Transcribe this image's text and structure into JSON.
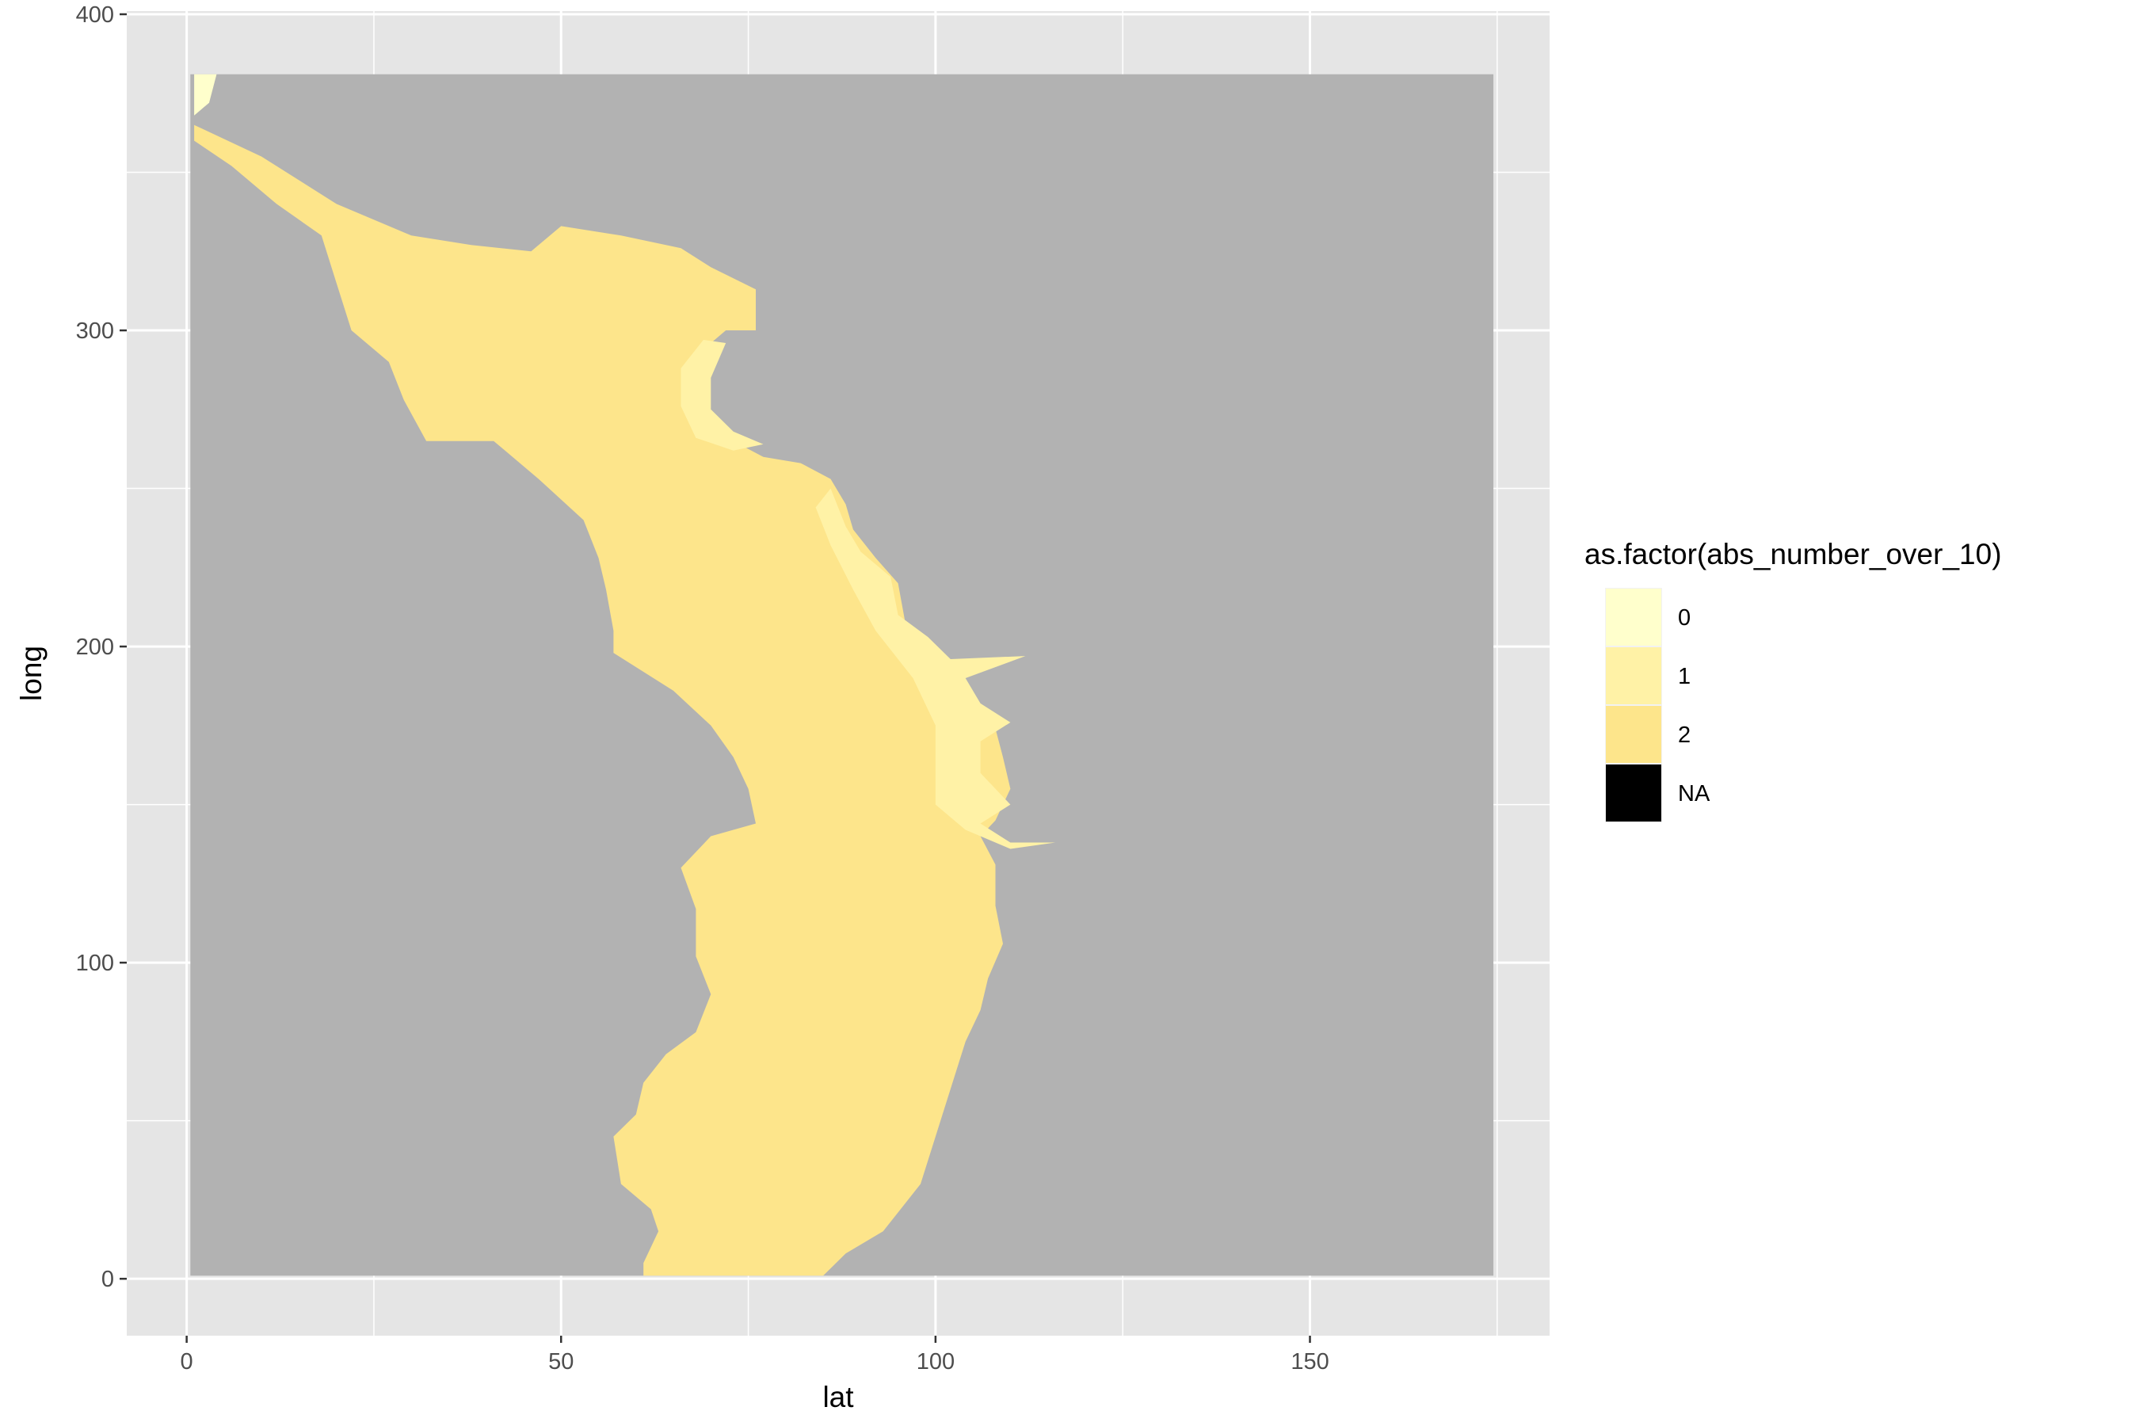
{
  "chart_data": {
    "type": "heatmap",
    "xlabel": "lat",
    "ylabel": "long",
    "xlim": [
      -8,
      182
    ],
    "ylim": [
      -18,
      401
    ],
    "x_ticks": [
      0,
      50,
      100,
      150
    ],
    "y_ticks": [
      0,
      100,
      200,
      300,
      400
    ],
    "x_tick_labels": [
      "0",
      "50",
      "100",
      "150"
    ],
    "y_tick_labels": [
      "0",
      "100",
      "200",
      "300",
      "400"
    ],
    "grid": true,
    "panel_background": "#e5e5e5",
    "grid_color": "#ffffff",
    "na_value_color": "#b2b2b2",
    "legend": {
      "title": "as.factor(abs_number_over_10)",
      "position": "right",
      "entries": [
        {
          "label": "0",
          "color": "#ffffcc"
        },
        {
          "label": "1",
          "color": "#fff2a6"
        },
        {
          "label": "2",
          "color": "#fde58b"
        },
        {
          "label": "NA",
          "color": "#000000"
        }
      ]
    },
    "regions": [
      {
        "name": "grid-extent",
        "category": "NA",
        "color": "#b2b2b2",
        "polygon": [
          [
            0.5,
            381
          ],
          [
            174.5,
            381
          ],
          [
            174.5,
            1
          ],
          [
            0.5,
            1
          ]
        ]
      },
      {
        "name": "category-2-region",
        "category": "2",
        "color": "#fde58b",
        "polygon": [
          [
            1,
            381
          ],
          [
            1,
            365
          ],
          [
            10,
            355
          ],
          [
            20,
            340
          ],
          [
            30,
            330
          ],
          [
            38,
            327
          ],
          [
            46,
            325
          ],
          [
            50,
            333
          ],
          [
            58,
            330
          ],
          [
            66,
            326
          ],
          [
            70,
            320
          ],
          [
            76,
            313
          ],
          [
            76,
            300
          ],
          [
            72,
            300
          ],
          [
            69,
            294
          ],
          [
            68,
            284
          ],
          [
            70,
            272
          ],
          [
            73,
            265
          ],
          [
            77,
            260
          ],
          [
            82,
            258
          ],
          [
            86,
            253
          ],
          [
            88,
            245
          ],
          [
            89,
            237
          ],
          [
            92,
            228
          ],
          [
            95,
            220
          ],
          [
            96,
            207
          ],
          [
            100,
            200
          ],
          [
            103,
            194
          ],
          [
            104,
            188
          ],
          [
            106,
            181
          ],
          [
            108,
            174
          ],
          [
            109,
            165
          ],
          [
            110,
            155
          ],
          [
            108,
            145
          ],
          [
            106,
            140
          ],
          [
            108,
            131
          ],
          [
            108,
            118
          ],
          [
            109,
            106
          ],
          [
            107,
            95
          ],
          [
            106,
            85
          ],
          [
            104,
            75
          ],
          [
            102,
            60
          ],
          [
            100,
            45
          ],
          [
            98,
            30
          ],
          [
            93,
            15
          ],
          [
            88,
            8
          ],
          [
            85,
            1
          ],
          [
            61,
            1
          ],
          [
            61,
            5
          ],
          [
            63,
            15
          ],
          [
            62,
            22
          ],
          [
            58,
            30
          ],
          [
            57,
            45
          ],
          [
            60,
            52
          ],
          [
            61,
            62
          ],
          [
            64,
            71
          ],
          [
            68,
            78
          ],
          [
            70,
            90
          ],
          [
            68,
            102
          ],
          [
            68,
            117
          ],
          [
            66,
            130
          ],
          [
            70,
            140
          ],
          [
            76,
            144
          ],
          [
            75,
            155
          ],
          [
            73,
            165
          ],
          [
            70,
            175
          ],
          [
            65,
            186
          ],
          [
            61,
            192
          ],
          [
            57,
            198
          ],
          [
            57,
            205
          ],
          [
            56,
            218
          ],
          [
            55,
            228
          ],
          [
            53,
            240
          ],
          [
            47,
            253
          ],
          [
            41,
            265
          ],
          [
            32,
            265
          ],
          [
            29,
            278
          ],
          [
            27,
            290
          ],
          [
            22,
            300
          ],
          [
            20,
            315
          ],
          [
            18,
            330
          ],
          [
            12,
            340
          ],
          [
            6,
            352
          ],
          [
            1,
            360
          ]
        ]
      },
      {
        "name": "category-1-region",
        "category": "1",
        "color": "#fff2a6",
        "polygon": [
          [
            72,
            296
          ],
          [
            70,
            285
          ],
          [
            70,
            275
          ],
          [
            73,
            268
          ],
          [
            77,
            264
          ],
          [
            73,
            262
          ],
          [
            68,
            266
          ],
          [
            66,
            276
          ],
          [
            66,
            288
          ],
          [
            69,
            297
          ]
        ]
      },
      {
        "name": "category-1-coast",
        "category": "1",
        "color": "#fff2a6",
        "polygon": [
          [
            86,
            250
          ],
          [
            88,
            238
          ],
          [
            90,
            230
          ],
          [
            94,
            222
          ],
          [
            95,
            210
          ],
          [
            99,
            203
          ],
          [
            102,
            196
          ],
          [
            112,
            197
          ],
          [
            104,
            190
          ],
          [
            106,
            182
          ],
          [
            110,
            176
          ],
          [
            106,
            170
          ],
          [
            106,
            160
          ],
          [
            110,
            150
          ],
          [
            106,
            144
          ],
          [
            110,
            138
          ],
          [
            116,
            138
          ],
          [
            110,
            136
          ],
          [
            104,
            142
          ],
          [
            100,
            150
          ],
          [
            100,
            162
          ],
          [
            100,
            175
          ],
          [
            97,
            190
          ],
          [
            92,
            205
          ],
          [
            89,
            218
          ],
          [
            86,
            232
          ],
          [
            84,
            244
          ]
        ]
      },
      {
        "name": "category-0-region",
        "category": "0",
        "color": "#ffffcc",
        "polygon": [
          [
            1,
            381
          ],
          [
            4,
            381
          ],
          [
            3,
            372
          ],
          [
            1,
            368
          ]
        ]
      }
    ]
  }
}
